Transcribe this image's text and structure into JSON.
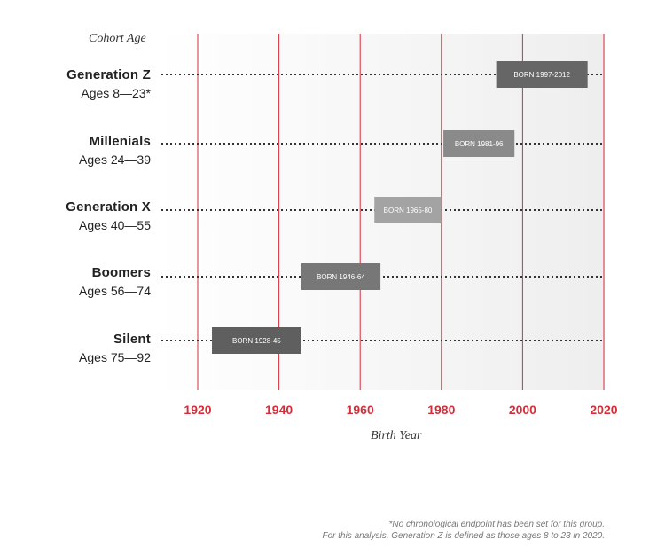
{
  "chart_data": {
    "type": "bar",
    "orientation": "horizontal",
    "cohort_header": "Cohort Age",
    "xlabel": "Birth Year",
    "xlim": [
      1920,
      2020
    ],
    "x_ticks": [
      "1920",
      "1940",
      "1960",
      "1980",
      "2000",
      "2020"
    ],
    "grid": "vertical",
    "colors": {
      "tick": "#d42e3a",
      "gridline": "#d42e3a",
      "dots": "#333333"
    },
    "generations": [
      {
        "name": "Generation Z",
        "ages": "Ages 8—23*",
        "bar_label": "BORN 1997-2012",
        "start": 1993.5,
        "end": 2016,
        "color": "#666666"
      },
      {
        "name": "Millenials",
        "ages": "Ages 24—39",
        "bar_label": "BORN 1981-96",
        "start": 1980.5,
        "end": 1998,
        "color": "#8a8a8a"
      },
      {
        "name": "Generation X",
        "ages": "Ages 40—55",
        "bar_label": "BORN 1965-80",
        "start": 1963.5,
        "end": 1980,
        "color": "#a3a3a3"
      },
      {
        "name": "Boomers",
        "ages": "Ages 56—74",
        "bar_label": "BORN 1946-64",
        "start": 1945.5,
        "end": 1965,
        "color": "#777777"
      },
      {
        "name": "Silent",
        "ages": "Ages 75—92",
        "bar_label": "BORN 1928-45",
        "start": 1923.5,
        "end": 1945.5,
        "color": "#5f5f5f"
      }
    ],
    "footnote": [
      "*No chronological endpoint has been set for this group.",
      "For this analysis, Generation Z is defined as those ages 8 to 23 in 2020."
    ]
  }
}
